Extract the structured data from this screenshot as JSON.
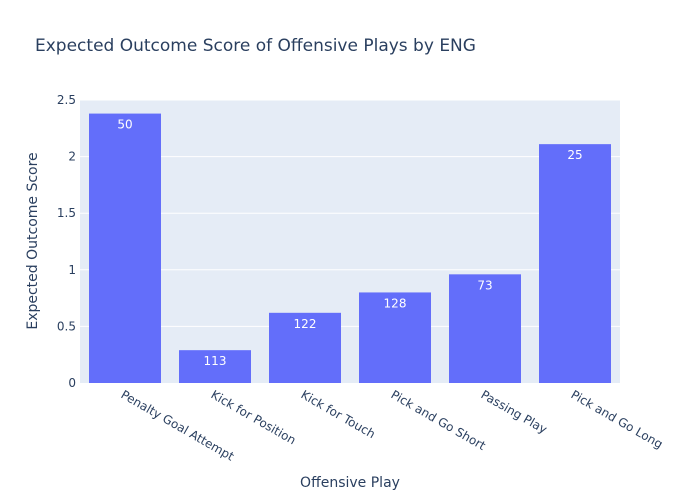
{
  "chart_data": {
    "type": "bar",
    "title": "Expected Outcome Score of Offensive Plays by ENG",
    "xlabel": "Offensive Play",
    "ylabel": "Expected Outcome Score",
    "categories": [
      "Penalty Goal Attempt",
      "Kick for Position",
      "Kick for Touch",
      "Pick and Go Short",
      "Passing Play",
      "Pick and Go Long"
    ],
    "values": [
      2.38,
      0.29,
      0.62,
      0.8,
      0.96,
      2.11
    ],
    "bar_labels": [
      "50",
      "113",
      "122",
      "128",
      "73",
      "25"
    ],
    "ylim": [
      0,
      2.5
    ],
    "yticks": [
      0,
      0.5,
      1,
      1.5,
      2,
      2.5
    ],
    "ytick_labels": [
      "0",
      "0.5",
      "1",
      "1.5",
      "2",
      "2.5"
    ],
    "grid": true,
    "colors": {
      "bar": "#636efa",
      "plot_bg": "#e5ecf6",
      "grid": "#ffffff",
      "text": "#2a3f5f"
    }
  }
}
